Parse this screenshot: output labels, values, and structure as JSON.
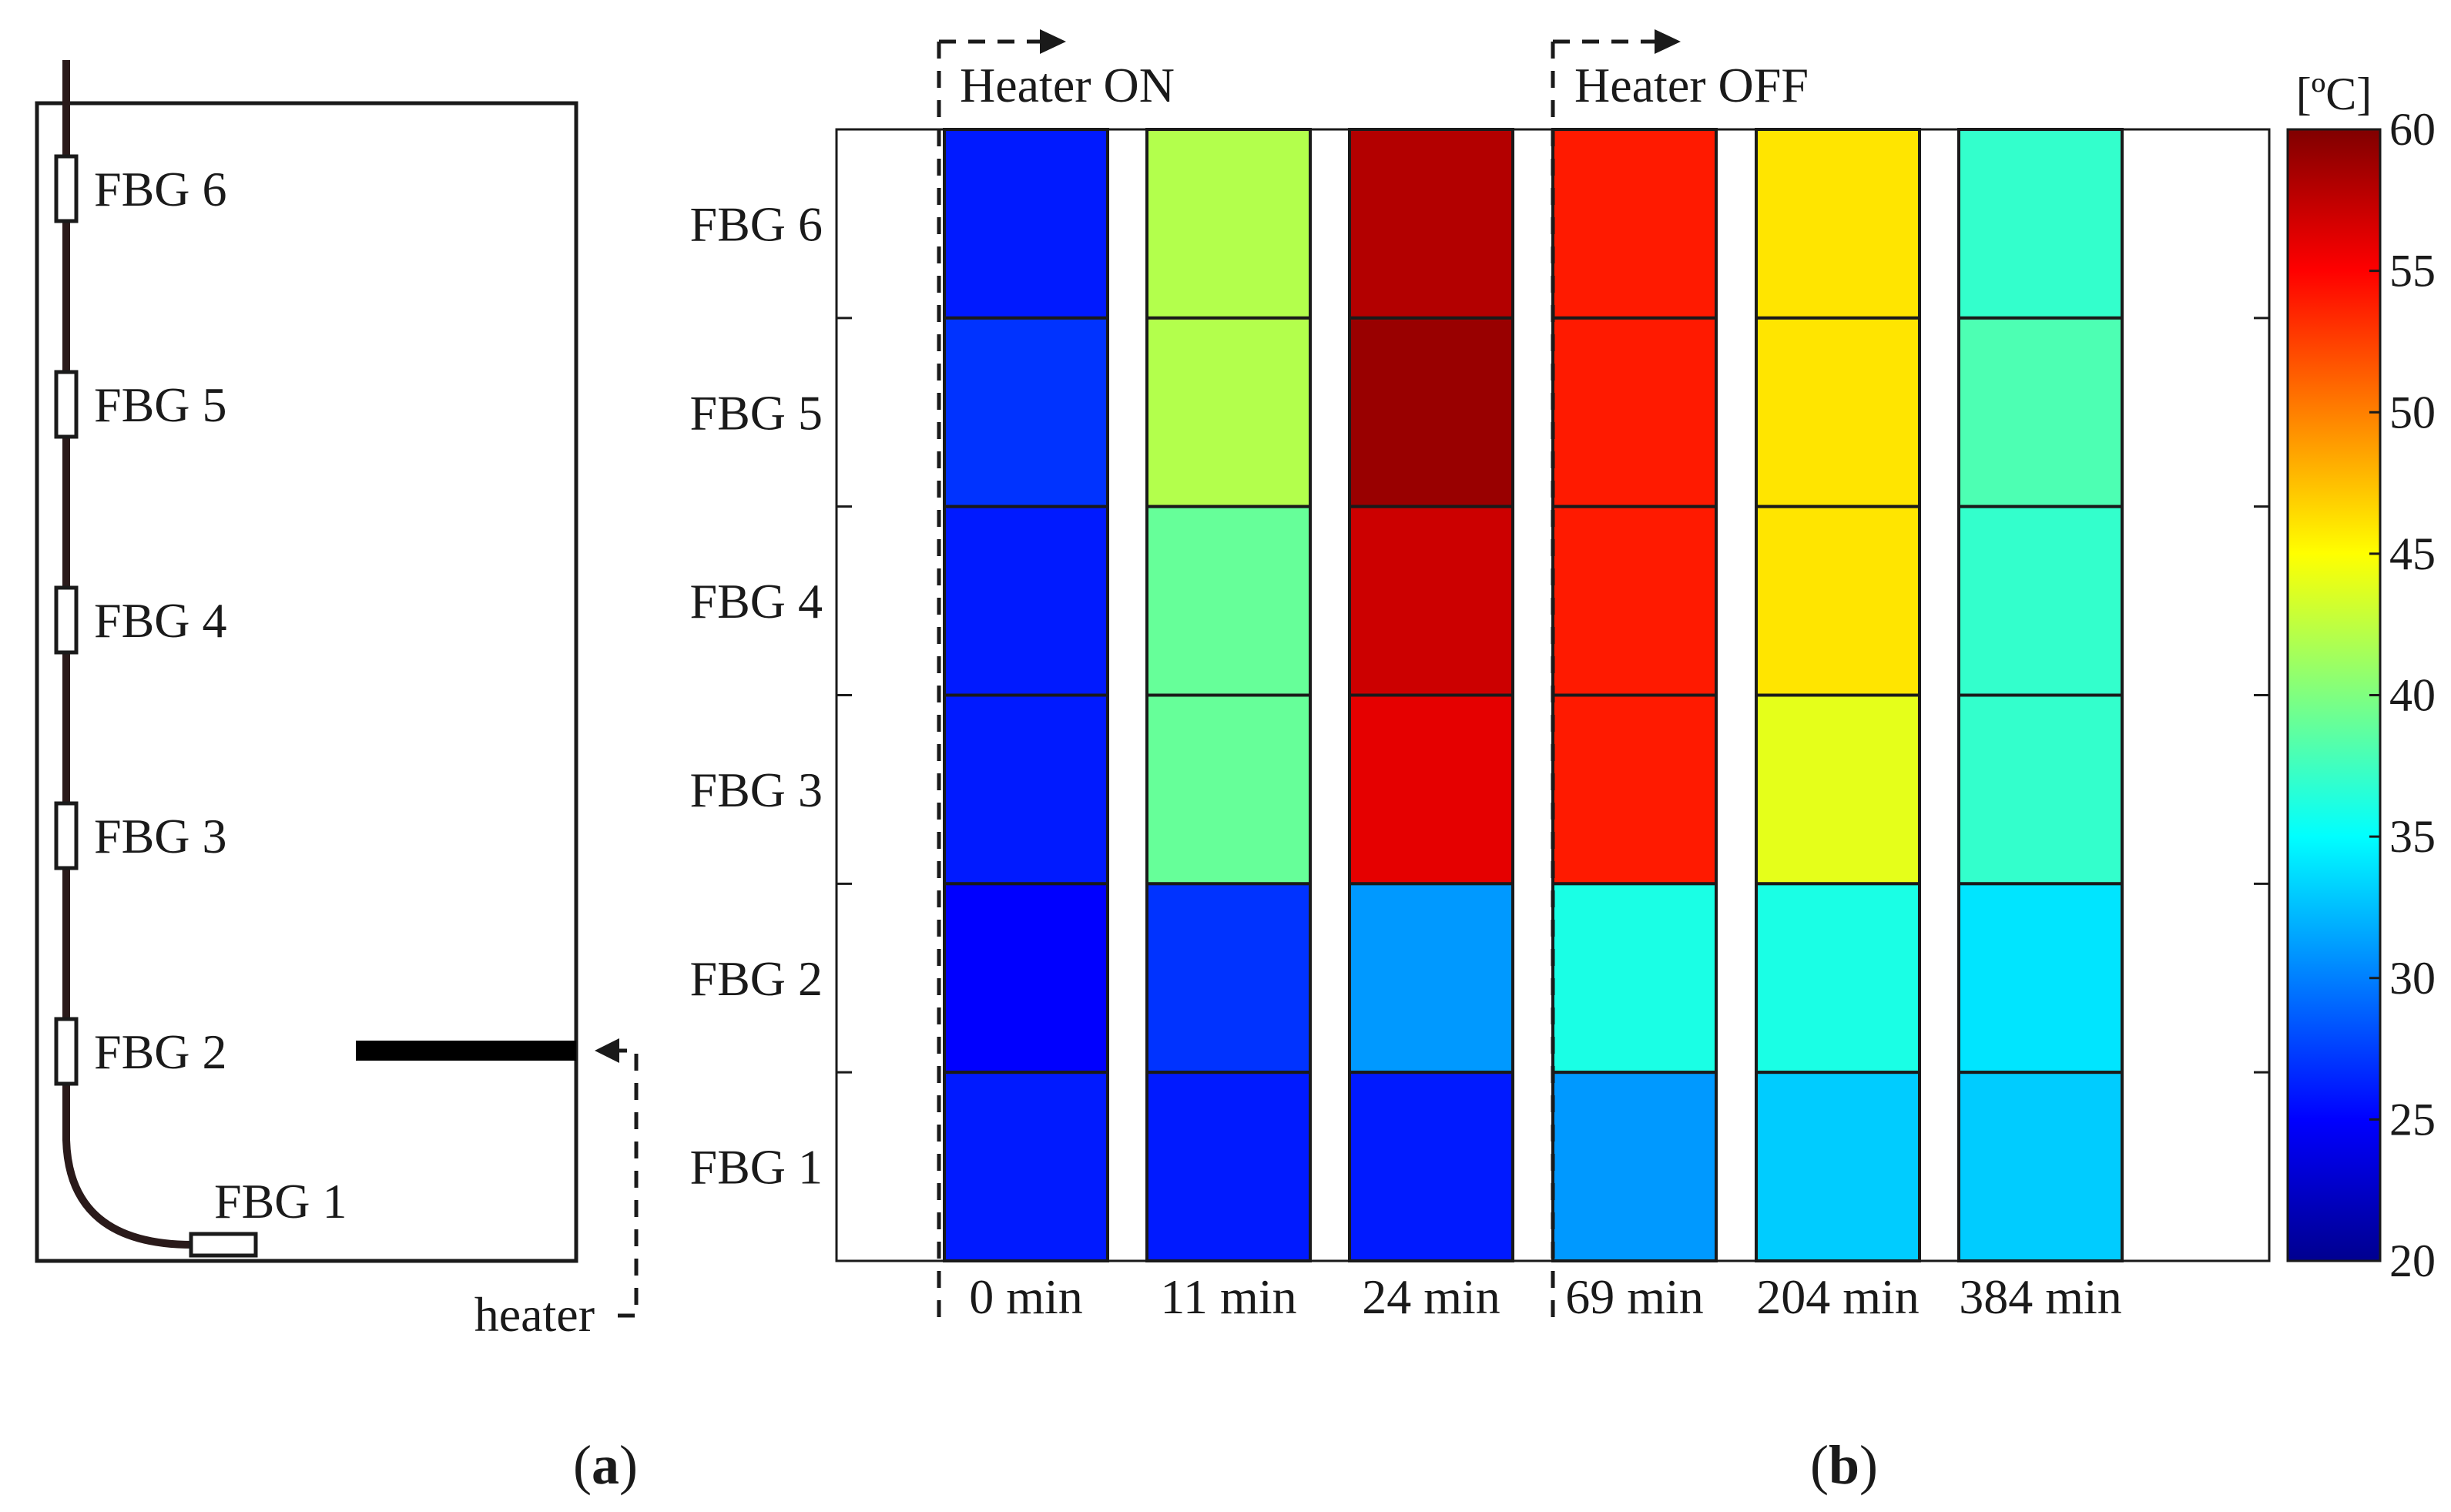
{
  "panel_a": {
    "label_open": "(",
    "label_letter": "a",
    "label_close": ")",
    "sensors": [
      "FBG 6",
      "FBG 5",
      "FBG 4",
      "FBG 3",
      "FBG 2",
      "FBG 1"
    ],
    "heater_label": "heater"
  },
  "panel_b": {
    "label_open": "(",
    "label_letter": "b",
    "label_close": ")",
    "heater_on_label": "Heater ON",
    "heater_off_label": "Heater OFF",
    "colorbar_unit": "[ºC]"
  },
  "chart_data": {
    "type": "heatmap",
    "title": "",
    "rows": [
      "FBG 6",
      "FBG 5",
      "FBG 4",
      "FBG 3",
      "FBG 2",
      "FBG 1"
    ],
    "columns": [
      "0 min",
      "11 min",
      "24 min",
      "69 min",
      "204 min",
      "384 min"
    ],
    "values": [
      [
        26,
        42,
        58,
        54,
        46,
        37
      ],
      [
        27,
        42,
        59,
        54,
        46,
        38
      ],
      [
        26,
        39,
        57,
        54,
        46,
        37
      ],
      [
        26,
        39,
        56,
        54,
        44,
        37
      ],
      [
        25,
        27,
        31,
        36,
        36,
        34
      ],
      [
        26,
        26,
        26,
        31,
        33,
        33
      ]
    ],
    "colorbar": {
      "min": 20,
      "max": 60,
      "ticks": [
        20,
        25,
        30,
        35,
        40,
        45,
        50,
        55,
        60
      ],
      "unit": "[ºC]",
      "colormap": "jet"
    },
    "annotations": [
      {
        "text": "Heater ON",
        "before_column": "0 min"
      },
      {
        "text": "Heater OFF",
        "before_column": "69 min"
      }
    ]
  }
}
